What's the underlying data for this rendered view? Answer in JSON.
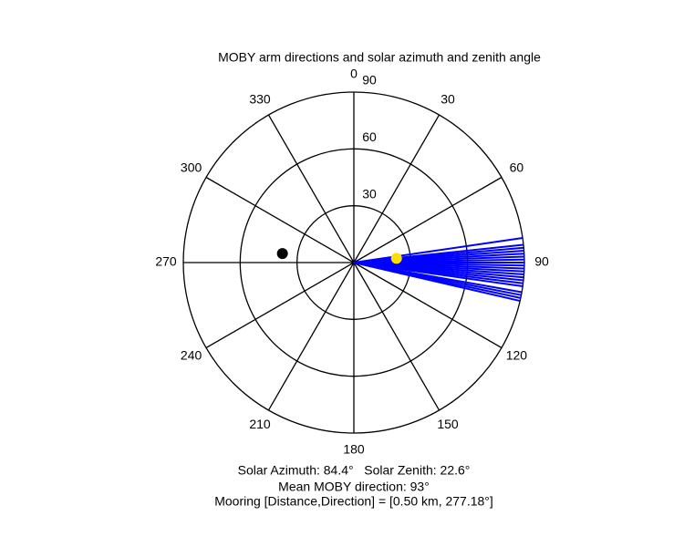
{
  "chart_data": {
    "type": "polar",
    "title": "MOBY arm directions and solar azimuth and zenith angle",
    "theta_zero": "top",
    "theta_direction": "clockwise",
    "thetaticks": [
      0,
      30,
      60,
      90,
      120,
      150,
      180,
      210,
      240,
      270,
      300,
      330
    ],
    "rlim": [
      0,
      90
    ],
    "rticks": [
      30,
      60,
      90
    ],
    "series": [
      {
        "color": "#0000ff",
        "values": [
          81.7,
          84,
          85,
          86,
          87,
          88,
          89,
          90,
          91,
          92,
          93,
          94,
          95,
          96,
          97,
          98,
          100,
          101,
          102,
          103
        ]
      }
    ],
    "sun": {
      "color": "#ffdd00",
      "azimuth": 84.4,
      "zenith": 22.6
    },
    "mooring": {
      "color": "#000000",
      "direction": 277.18,
      "r": 38
    },
    "annotations": [
      "Solar Azimuth: 84.4°   Solar Zenith: 22.6°",
      "Mean MOBY direction: 93°",
      "Mooring [Distance,Direction] = [0.50 km, 277.18°]"
    ]
  }
}
